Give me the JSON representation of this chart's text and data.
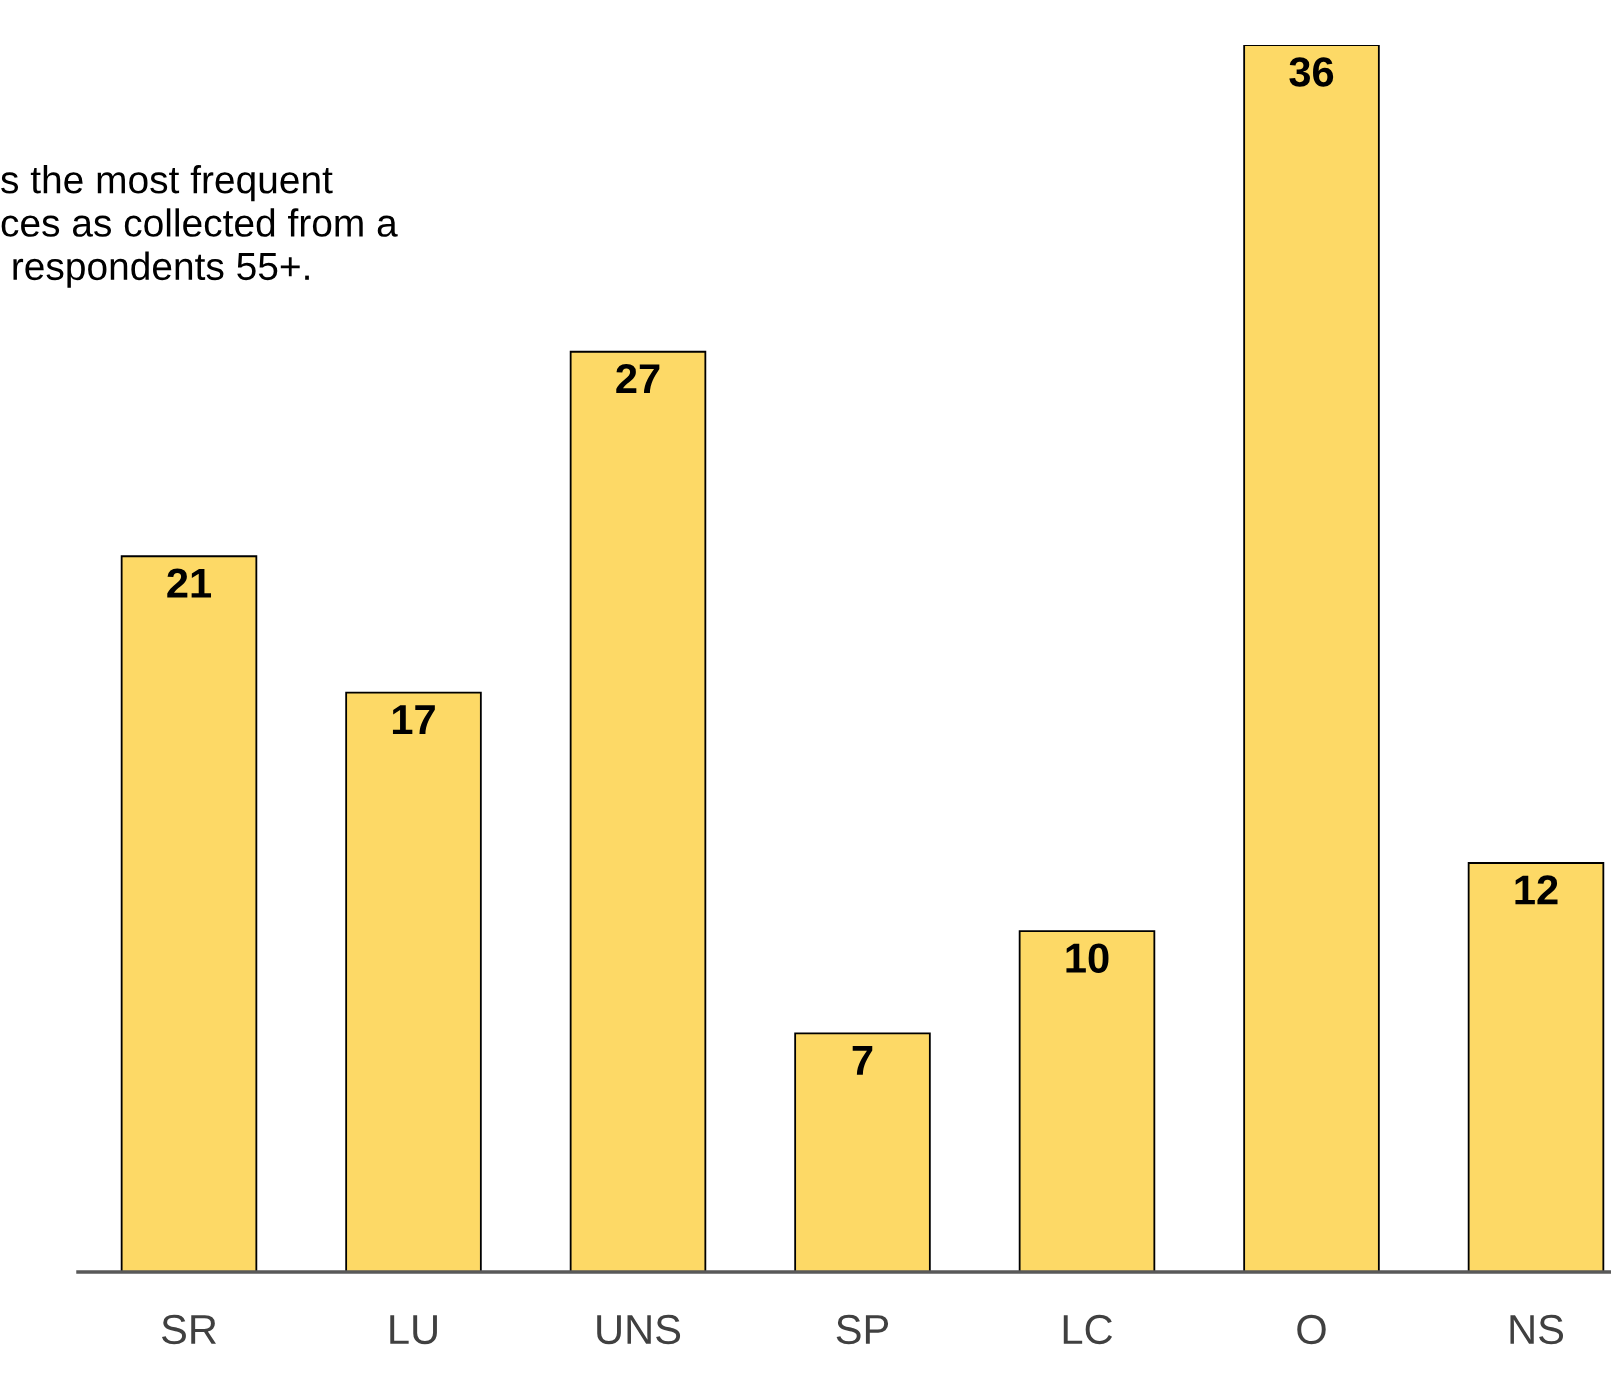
{
  "chart_data": {
    "type": "bar",
    "categories": [
      "SR",
      "LU",
      "UNS",
      "SP",
      "LC",
      "O",
      "NS"
    ],
    "values": [
      21,
      17,
      27,
      7,
      10,
      36,
      12
    ],
    "color": "#fdd966",
    "data_labels": true,
    "annotations": [
      "s the most frequent\nces as collected from a\n respondents 55+."
    ]
  }
}
